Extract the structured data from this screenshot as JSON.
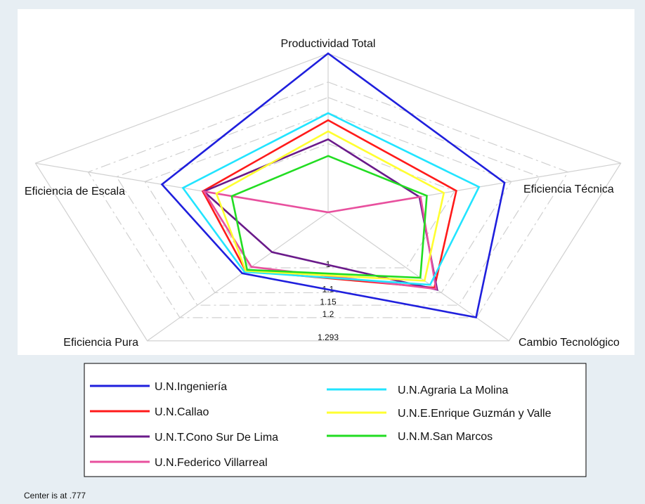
{
  "chart_data": {
    "type": "radar",
    "axes": [
      "Productividad Total",
      "Eficiencia Técnica",
      "Cambio Tecnológico",
      "Eficiencia Pura",
      "Eficiencia de Escala"
    ],
    "rlim": [
      0.777,
      1.293
    ],
    "rticks": [
      1,
      1.1,
      1.15,
      1.2,
      1.293
    ],
    "note": "Center is at .777",
    "series": [
      {
        "name": "U.N.Ingeniería",
        "color": "#1f1fdd",
        "values": [
          1.293,
          1.088,
          1.199,
          1.022,
          1.07
        ]
      },
      {
        "name": "U.N.Callao",
        "color": "#ff1a1a",
        "values": [
          1.076,
          1.003,
          1.08,
          1.012,
          0.998
        ]
      },
      {
        "name": "U.N.T.Cono Sur De Lima",
        "color": "#6a1a8a",
        "values": [
          1.014,
          0.938,
          1.088,
          0.937,
          0.996
        ]
      },
      {
        "name": "U.N.Federico Villarreal",
        "color": "#e8509e",
        "values": [
          0.777,
          0.94,
          1.085,
          0.996,
          0.996
        ]
      },
      {
        "name": "U.N.Agraria La Molina",
        "color": "#22e4ff",
        "values": [
          1.099,
          1.043,
          1.068,
          1.016,
          1.033
        ]
      },
      {
        "name": "U.N.E.Enrique Guzmán y Valle",
        "color": "#ffff30",
        "values": [
          1.04,
          0.981,
          1.052,
          1.012,
          0.974
        ]
      },
      {
        "name": "U.N.M.San Marcos",
        "color": "#22dd22",
        "values": [
          0.96,
          0.951,
          1.04,
          1.008,
          0.947
        ]
      }
    ]
  }
}
